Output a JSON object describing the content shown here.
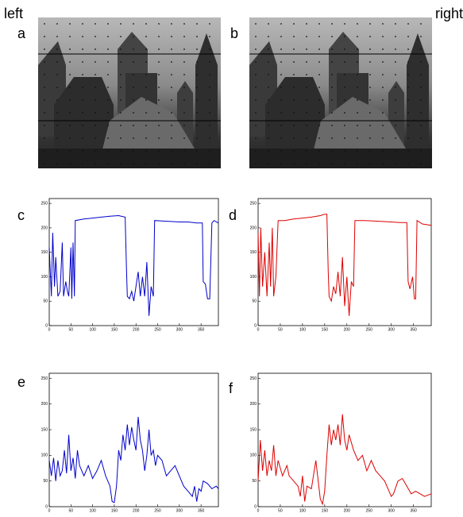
{
  "header": {
    "left": "left",
    "right": "right"
  },
  "images": [
    {
      "label": "a"
    },
    {
      "label": "b"
    }
  ],
  "chart_data": [
    {
      "type": "line",
      "title": "c",
      "color": "#0000cc",
      "x": [
        0,
        5,
        8,
        12,
        15,
        20,
        25,
        30,
        33,
        38,
        42,
        45,
        50,
        52,
        55,
        58,
        60,
        80,
        100,
        120,
        140,
        160,
        175,
        178,
        180,
        185,
        190,
        195,
        200,
        205,
        210,
        215,
        220,
        225,
        230,
        235,
        240,
        243,
        260,
        280,
        300,
        320,
        340,
        353,
        355,
        360,
        365,
        370,
        375,
        380,
        390
      ],
      "values": [
        160,
        60,
        190,
        80,
        140,
        60,
        70,
        170,
        60,
        90,
        70,
        60,
        160,
        55,
        170,
        60,
        215,
        218,
        220,
        222,
        224,
        225,
        222,
        120,
        60,
        55,
        70,
        50,
        80,
        110,
        60,
        100,
        60,
        130,
        20,
        80,
        60,
        215,
        214,
        213,
        212,
        212,
        210,
        210,
        90,
        85,
        55,
        55,
        210,
        215,
        210
      ],
      "xlim": [
        0,
        390
      ],
      "xticks": [
        0,
        50,
        100,
        150,
        200,
        250,
        300,
        350
      ],
      "ylim": [
        0,
        260
      ],
      "yticks": [
        0,
        50,
        100,
        150,
        200,
        250
      ]
    },
    {
      "type": "line",
      "title": "d",
      "color": "#dd0000",
      "x": [
        0,
        3,
        6,
        10,
        15,
        20,
        25,
        28,
        32,
        35,
        40,
        45,
        60,
        80,
        100,
        120,
        140,
        150,
        155,
        158,
        160,
        165,
        170,
        175,
        180,
        185,
        190,
        195,
        200,
        205,
        210,
        215,
        218,
        240,
        260,
        280,
        300,
        320,
        335,
        338,
        342,
        348,
        352,
        355,
        358,
        370,
        390
      ],
      "values": [
        190,
        60,
        200,
        80,
        150,
        60,
        170,
        80,
        200,
        60,
        100,
        215,
        215,
        218,
        220,
        222,
        225,
        228,
        228,
        110,
        60,
        50,
        80,
        65,
        110,
        60,
        140,
        40,
        100,
        20,
        90,
        80,
        215,
        215,
        214,
        213,
        212,
        211,
        211,
        90,
        75,
        100,
        55,
        55,
        215,
        208,
        205
      ],
      "xlim": [
        0,
        390
      ],
      "xticks": [
        0,
        50,
        100,
        150,
        200,
        250,
        300,
        350
      ],
      "ylim": [
        0,
        260
      ],
      "yticks": [
        0,
        50,
        100,
        150,
        200,
        250
      ]
    },
    {
      "type": "line",
      "title": "e",
      "color": "#0000cc",
      "x": [
        0,
        5,
        10,
        15,
        20,
        25,
        30,
        35,
        40,
        45,
        50,
        55,
        60,
        65,
        70,
        80,
        90,
        100,
        110,
        120,
        130,
        140,
        145,
        150,
        155,
        160,
        165,
        170,
        175,
        180,
        185,
        190,
        195,
        200,
        205,
        210,
        215,
        220,
        225,
        230,
        235,
        240,
        245,
        250,
        260,
        270,
        280,
        290,
        300,
        310,
        320,
        330,
        335,
        340,
        345,
        350,
        355,
        365,
        375,
        385,
        390
      ],
      "values": [
        90,
        60,
        95,
        50,
        90,
        60,
        70,
        110,
        65,
        140,
        70,
        95,
        55,
        110,
        80,
        60,
        80,
        55,
        70,
        90,
        60,
        40,
        10,
        8,
        40,
        110,
        90,
        140,
        110,
        160,
        120,
        155,
        130,
        110,
        175,
        130,
        110,
        70,
        100,
        150,
        100,
        110,
        80,
        100,
        90,
        60,
        70,
        80,
        60,
        40,
        30,
        20,
        40,
        10,
        35,
        30,
        50,
        45,
        35,
        40,
        35
      ],
      "xlim": [
        0,
        390
      ],
      "xticks": [
        0,
        50,
        100,
        150,
        200,
        250,
        300,
        350
      ],
      "ylim": [
        0,
        260
      ],
      "yticks": [
        0,
        50,
        100,
        150,
        200,
        250
      ]
    },
    {
      "type": "line",
      "title": "f",
      "color": "#dd0000",
      "x": [
        0,
        5,
        10,
        15,
        20,
        25,
        30,
        35,
        40,
        45,
        55,
        65,
        70,
        80,
        90,
        95,
        100,
        105,
        110,
        120,
        130,
        140,
        145,
        150,
        155,
        160,
        165,
        170,
        175,
        180,
        185,
        190,
        195,
        200,
        205,
        215,
        225,
        235,
        245,
        255,
        265,
        275,
        285,
        295,
        300,
        305,
        315,
        325,
        335,
        345,
        355,
        365,
        375,
        390
      ],
      "values": [
        50,
        130,
        70,
        110,
        60,
        90,
        70,
        120,
        60,
        90,
        60,
        80,
        60,
        50,
        40,
        20,
        60,
        10,
        40,
        35,
        90,
        15,
        5,
        30,
        100,
        160,
        120,
        150,
        130,
        160,
        120,
        180,
        130,
        110,
        140,
        110,
        90,
        100,
        70,
        90,
        70,
        60,
        50,
        30,
        20,
        25,
        50,
        55,
        40,
        25,
        30,
        25,
        20,
        25
      ],
      "xlim": [
        0,
        390
      ],
      "xticks": [
        0,
        50,
        100,
        150,
        200,
        250,
        300,
        350
      ],
      "ylim": [
        0,
        260
      ],
      "yticks": [
        0,
        50,
        100,
        150,
        200,
        250
      ]
    }
  ]
}
